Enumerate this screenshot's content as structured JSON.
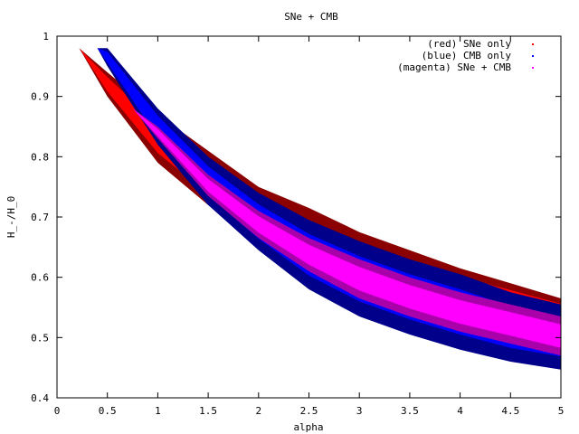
{
  "chart_data": {
    "type": "area",
    "title": "SNe + CMB",
    "xlabel": "alpha",
    "ylabel": "H_-/H_0",
    "xlim": [
      0,
      5
    ],
    "ylim": [
      0.4,
      1
    ],
    "xticks": [
      0,
      0.5,
      1,
      1.5,
      2,
      2.5,
      3,
      3.5,
      4,
      4.5,
      5
    ],
    "xtick_labels": [
      "0",
      "0.5",
      "1",
      "1.5",
      "2",
      "2.5",
      "3",
      "3.5",
      "4",
      "4.5",
      "5"
    ],
    "yticks": [
      0.4,
      0.5,
      0.6,
      0.7,
      0.8,
      0.9,
      1
    ],
    "ytick_labels": [
      "0.4",
      "0.5",
      "0.6",
      "0.7",
      "0.8",
      "0.9",
      "1"
    ],
    "legend_position": "top-right",
    "series": [
      {
        "name": "(red) SNe only",
        "color": "#ff0000",
        "outer_color": "#8b0000",
        "x": [
          0.22,
          0.5,
          1.0,
          1.5,
          2.0,
          2.5,
          3.0,
          3.5,
          4.0,
          4.5,
          5.0
        ],
        "y_upper": [
          0.98,
          0.94,
          0.87,
          0.81,
          0.75,
          0.715,
          0.675,
          0.645,
          0.615,
          0.59,
          0.565
        ],
        "y_lower": [
          0.98,
          0.9,
          0.79,
          0.72,
          0.665,
          0.615,
          0.58,
          0.56,
          0.545,
          0.535,
          0.52
        ]
      },
      {
        "name": "(blue) CMB only",
        "color": "#0000ff",
        "outer_color": "#00008b",
        "x": [
          0.4,
          0.5,
          1.0,
          1.5,
          2.0,
          2.5,
          3.0,
          3.5,
          4.0,
          4.5,
          5.0
        ],
        "y_upper": [
          0.98,
          0.98,
          0.88,
          0.8,
          0.74,
          0.695,
          0.66,
          0.63,
          0.605,
          0.575,
          0.555
        ],
        "y_lower": [
          0.98,
          0.95,
          0.82,
          0.72,
          0.645,
          0.58,
          0.535,
          0.505,
          0.48,
          0.46,
          0.447
        ]
      },
      {
        "name": "(magenta) SNe + CMB",
        "color": "#ff00ff",
        "outer_color": "#aa00aa",
        "x": [
          0.75,
          1.0,
          1.5,
          2.0,
          2.5,
          3.0,
          3.5,
          4.0,
          4.5,
          5.0
        ],
        "y_upper": [
          0.88,
          0.85,
          0.77,
          0.71,
          0.665,
          0.63,
          0.6,
          0.575,
          0.555,
          0.535
        ],
        "y_lower": [
          0.88,
          0.83,
          0.735,
          0.665,
          0.61,
          0.565,
          0.535,
          0.51,
          0.49,
          0.47
        ]
      }
    ]
  }
}
